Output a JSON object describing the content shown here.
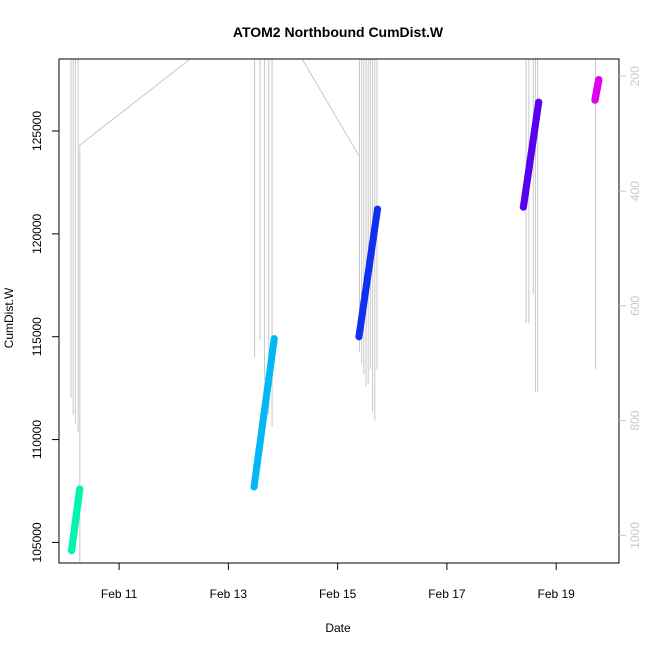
{
  "chart_data": {
    "type": "scatter",
    "title": "ATOM2 Northbound CumDist.W",
    "xlabel": "Date",
    "ylabel": "CumDist.W",
    "x_unit": "days (February)",
    "xlim": [
      9.9,
      20.15
    ],
    "ylim": [
      104000,
      128500
    ],
    "x_ticks": [
      {
        "value": 11,
        "label": "Feb 11"
      },
      {
        "value": 13,
        "label": "Feb 13"
      },
      {
        "value": 15,
        "label": "Feb 15"
      },
      {
        "value": 17,
        "label": "Feb 17"
      },
      {
        "value": 19,
        "label": "Feb 19"
      }
    ],
    "y_ticks": [
      105000,
      110000,
      115000,
      120000,
      125000
    ],
    "y2_ticks": [
      200,
      400,
      600,
      800,
      1000
    ],
    "y2_range_at_ylim": [
      1048,
      170
    ],
    "series": [
      {
        "color": "#00f5b0",
        "points": [
          [
            10.13,
            104600
          ],
          [
            10.28,
            107600
          ]
        ]
      },
      {
        "color": "#00b8f5",
        "points": [
          [
            13.47,
            107700
          ],
          [
            13.84,
            114900
          ]
        ]
      },
      {
        "color": "#1030f0",
        "points": [
          [
            15.39,
            115000
          ],
          [
            15.73,
            121200
          ]
        ]
      },
      {
        "color": "#5a00f0",
        "points": [
          [
            18.4,
            121300
          ],
          [
            18.68,
            126400
          ]
        ]
      },
      {
        "color": "#e000f0",
        "points": [
          [
            19.71,
            126500
          ],
          [
            19.78,
            127500
          ]
        ]
      }
    ],
    "background_lines": [
      {
        "x": 10.12,
        "y2_bottom": 760
      },
      {
        "x": 10.16,
        "y2_bottom": 790
      },
      {
        "x": 10.2,
        "y2_bottom": 805
      },
      {
        "x": 10.25,
        "y2_bottom": 820
      },
      {
        "x": 13.48,
        "y2_bottom": 690
      },
      {
        "x": 13.58,
        "y2_bottom": 660
      },
      {
        "x": 13.66,
        "y2_bottom": 730
      },
      {
        "x": 13.74,
        "y2_bottom": 790
      },
      {
        "x": 13.8,
        "y2_bottom": 810
      },
      {
        "x": 15.4,
        "y2_bottom": 680
      },
      {
        "x": 15.44,
        "y2_bottom": 700
      },
      {
        "x": 15.48,
        "y2_bottom": 720
      },
      {
        "x": 15.52,
        "y2_bottom": 740
      },
      {
        "x": 15.56,
        "y2_bottom": 735
      },
      {
        "x": 15.6,
        "y2_bottom": 710
      },
      {
        "x": 15.64,
        "y2_bottom": 785
      },
      {
        "x": 15.68,
        "y2_bottom": 800
      },
      {
        "x": 15.72,
        "y2_bottom": 710
      },
      {
        "x": 18.45,
        "y2_bottom": 630
      },
      {
        "x": 18.5,
        "y2_bottom": 630
      },
      {
        "x": 18.58,
        "y2_bottom": 580
      },
      {
        "x": 18.62,
        "y2_bottom": 750
      },
      {
        "x": 18.66,
        "y2_bottom": 750
      },
      {
        "x": 19.72,
        "y2_bottom": 710
      }
    ],
    "background_path": [
      [
        10.28,
        1232
      ],
      [
        10.28,
        320
      ],
      [
        12.3,
        170
      ],
      [
        14.35,
        170
      ],
      [
        15.4,
        340
      ],
      [
        15.4,
        170
      ]
    ]
  }
}
